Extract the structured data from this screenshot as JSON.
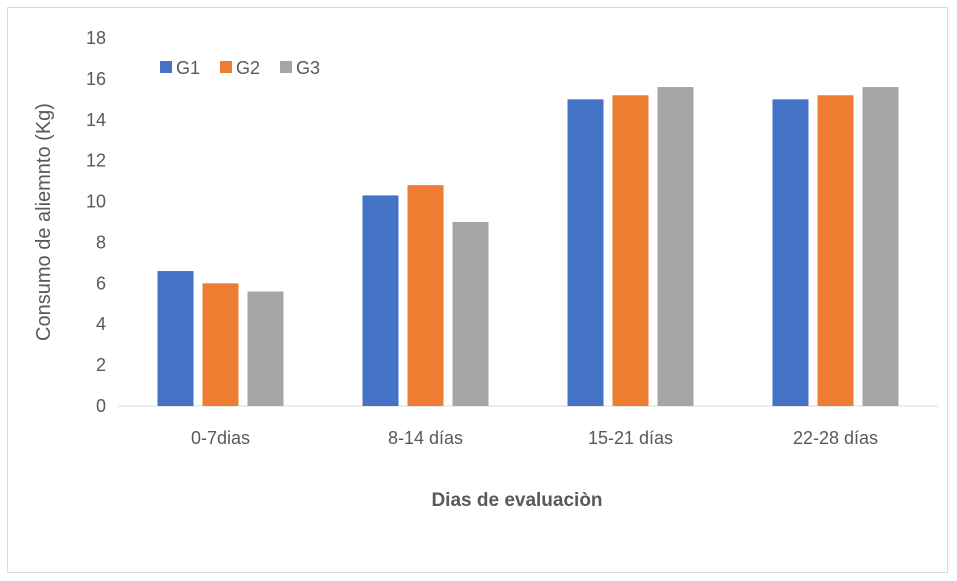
{
  "chart_data": {
    "type": "bar",
    "categories": [
      "0-7dias",
      "8-14 días",
      "15-21 días",
      "22-28 días"
    ],
    "series": [
      {
        "name": "G1",
        "values": [
          6.6,
          10.3,
          15.0,
          15.0
        ],
        "color": "#4472c4"
      },
      {
        "name": "G2",
        "values": [
          6.0,
          10.8,
          15.2,
          15.2
        ],
        "color": "#ed7d31"
      },
      {
        "name": "G3",
        "values": [
          5.6,
          9.0,
          15.6,
          15.6
        ],
        "color": "#a5a5a5"
      }
    ],
    "xlabel": "Dias de evaluaciòn",
    "ylabel": "Consumo de aliemnto (Kg)",
    "ylim": [
      0,
      18
    ],
    "yticks": [
      "0",
      "2",
      "4",
      "6",
      "8",
      "10",
      "12",
      "14",
      "16",
      "18"
    ],
    "grid": false,
    "legend": "top-left"
  }
}
